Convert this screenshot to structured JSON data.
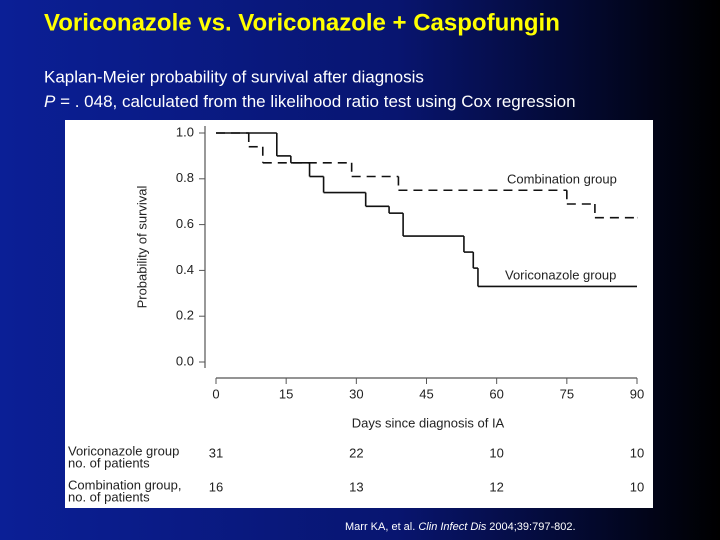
{
  "chart_data": {
    "type": "step",
    "title": "Voriconazole  vs. Voriconazole + Caspofungin",
    "subtitle": [
      "Kaplan-Meier probability of survival after diagnosis",
      [
        "P",
        " = . 048, calculated from the likelihood ratio test using Cox regression"
      ]
    ],
    "xlabel": "Days since diagnosis of IA",
    "ylabel": "Probability of survival",
    "xlim": [
      0,
      90
    ],
    "ylim": [
      0,
      1
    ],
    "xticks": [
      0,
      15,
      30,
      45,
      60,
      75,
      90
    ],
    "yticks": [
      {
        "value": 0,
        "label": "0.0"
      },
      0.2,
      0.4,
      0.6,
      0.8,
      {
        "value": 1,
        "label": "1.0"
      }
    ],
    "series": [
      {
        "name": "Combination group",
        "color": "#111111",
        "dashed": true,
        "x": [
          0,
          7,
          10,
          29,
          39,
          75,
          81,
          90
        ],
        "values": [
          1.0,
          0.94,
          0.87,
          0.81,
          0.75,
          0.69,
          0.63,
          0.63
        ]
      },
      {
        "name": "Voriconazole group",
        "color": "#111111",
        "dashed": false,
        "x": [
          0,
          13,
          16,
          20,
          23,
          32,
          37,
          40,
          53,
          55,
          56,
          90
        ],
        "values": [
          1.0,
          0.9,
          0.87,
          0.81,
          0.74,
          0.68,
          0.65,
          0.55,
          0.48,
          0.41,
          0.33,
          0.33
        ]
      }
    ],
    "at_risk": [
      {
        "label": [
          "Voriconazole group",
          "no. of patients"
        ],
        "values": [
          31,
          22,
          10,
          10
        ]
      },
      {
        "label": [
          "Combination group,",
          "no. of patients"
        ],
        "values": [
          16,
          13,
          12,
          10
        ]
      }
    ],
    "citation": [
      "Marr KA, et al. ",
      "Clin Infect Dis",
      " 2004;39:797-802."
    ]
  }
}
